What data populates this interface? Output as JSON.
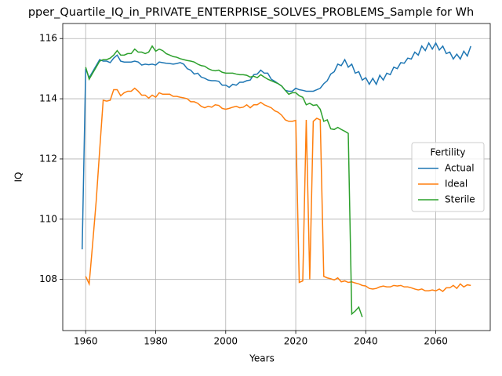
{
  "chart_data": {
    "type": "line",
    "title": "pper_Quartile_IQ_in_PRIVATE_ENTERPRISE_SOLVES_PROBLEMS_Sample for Wh",
    "xlabel": "Years",
    "ylabel": "IQ",
    "x": [
      1959,
      1960,
      1961,
      1962,
      1963,
      1964,
      1965,
      1966,
      1967,
      1968,
      1969,
      1970,
      1971,
      1972,
      1973,
      1974,
      1975,
      1976,
      1977,
      1978,
      1979,
      1980,
      1981,
      1982,
      1983,
      1984,
      1985,
      1986,
      1987,
      1988,
      1989,
      1990,
      1991,
      1992,
      1993,
      1994,
      1995,
      1996,
      1997,
      1998,
      1999,
      2000,
      2001,
      2002,
      2003,
      2004,
      2005,
      2006,
      2007,
      2008,
      2009,
      2010,
      2011,
      2012,
      2013,
      2014,
      2015,
      2016,
      2017,
      2018,
      2019,
      2020,
      2021,
      2022,
      2023,
      2024,
      2025,
      2026,
      2027,
      2028,
      2029,
      2030,
      2031,
      2032,
      2033,
      2034,
      2035,
      2036,
      2037,
      2038,
      2039,
      2040,
      2041,
      2042,
      2043,
      2044,
      2045,
      2046,
      2047,
      2048,
      2049,
      2050,
      2051,
      2052,
      2053,
      2054,
      2055,
      2056,
      2057,
      2058,
      2059,
      2060,
      2061,
      2062,
      2063,
      2064,
      2065,
      2066,
      2067,
      2068,
      2069,
      2070
    ],
    "series": [
      {
        "name": "Actual",
        "color": "#1f77b4",
        "values": [
          109.0,
          115.0,
          114.7,
          114.9,
          115.1,
          115.3,
          115.25,
          115.25,
          115.2,
          115.35,
          115.45,
          115.25,
          115.22,
          115.22,
          115.22,
          115.25,
          115.22,
          115.12,
          115.15,
          115.13,
          115.15,
          115.12,
          115.22,
          115.2,
          115.18,
          115.17,
          115.15,
          115.17,
          115.2,
          115.15,
          115.0,
          114.95,
          114.82,
          114.85,
          114.72,
          114.68,
          114.62,
          114.6,
          114.6,
          114.58,
          114.45,
          114.45,
          114.38,
          114.48,
          114.45,
          114.55,
          114.55,
          114.6,
          114.62,
          114.8,
          114.82,
          114.95,
          114.85,
          114.85,
          114.65,
          114.58,
          114.5,
          114.42,
          114.28,
          114.25,
          114.25,
          114.35,
          114.3,
          114.28,
          114.25,
          114.25,
          114.25,
          114.3,
          114.35,
          114.5,
          114.6,
          114.82,
          114.9,
          115.15,
          115.1,
          115.3,
          115.05,
          115.15,
          114.85,
          114.9,
          114.62,
          114.7,
          114.48,
          114.68,
          114.48,
          114.78,
          114.62,
          114.85,
          114.8,
          115.05,
          115.0,
          115.2,
          115.18,
          115.35,
          115.32,
          115.55,
          115.45,
          115.75,
          115.6,
          115.85,
          115.65,
          115.85,
          115.62,
          115.75,
          115.5,
          115.55,
          115.32,
          115.48,
          115.32,
          115.58,
          115.42,
          115.75
        ]
      },
      {
        "name": "Ideal",
        "color": "#ff7f0e",
        "values": [
          null,
          108.1,
          107.85,
          109.2,
          110.6,
          112.3,
          113.95,
          113.92,
          113.95,
          114.3,
          114.3,
          114.1,
          114.2,
          114.25,
          114.25,
          114.35,
          114.25,
          114.12,
          114.12,
          114.02,
          114.12,
          114.05,
          114.2,
          114.15,
          114.15,
          114.15,
          114.08,
          114.08,
          114.05,
          114.03,
          114.0,
          113.9,
          113.9,
          113.85,
          113.75,
          113.7,
          113.75,
          113.72,
          113.8,
          113.78,
          113.68,
          113.65,
          113.68,
          113.72,
          113.75,
          113.7,
          113.72,
          113.8,
          113.7,
          113.8,
          113.8,
          113.88,
          113.8,
          113.75,
          113.7,
          113.6,
          113.55,
          113.45,
          113.3,
          113.25,
          113.25,
          113.28,
          107.9,
          107.95,
          113.3,
          108.0,
          113.25,
          113.35,
          113.3,
          108.1,
          108.05,
          108.02,
          107.98,
          108.05,
          107.92,
          107.95,
          107.9,
          107.92,
          107.88,
          107.85,
          107.8,
          107.78,
          107.7,
          107.68,
          107.7,
          107.75,
          107.78,
          107.75,
          107.75,
          107.8,
          107.78,
          107.8,
          107.75,
          107.75,
          107.72,
          107.68,
          107.65,
          107.68,
          107.62,
          107.62,
          107.65,
          107.62,
          107.68,
          107.6,
          107.72,
          107.72,
          107.8,
          107.7,
          107.85,
          107.75,
          107.82,
          107.8
        ]
      },
      {
        "name": "Sterile",
        "color": "#2ca02c",
        "values": [
          null,
          115.05,
          114.65,
          114.85,
          115.05,
          115.25,
          115.3,
          115.3,
          115.35,
          115.45,
          115.6,
          115.45,
          115.45,
          115.5,
          115.5,
          115.65,
          115.55,
          115.55,
          115.5,
          115.55,
          115.75,
          115.58,
          115.65,
          115.6,
          115.5,
          115.45,
          115.4,
          115.38,
          115.33,
          115.3,
          115.27,
          115.25,
          115.22,
          115.15,
          115.1,
          115.08,
          115.0,
          114.95,
          114.93,
          114.95,
          114.88,
          114.85,
          114.85,
          114.85,
          114.82,
          114.8,
          114.8,
          114.78,
          114.72,
          114.75,
          114.7,
          114.8,
          114.72,
          114.65,
          114.6,
          114.55,
          114.5,
          114.42,
          114.28,
          114.15,
          114.2,
          114.2,
          114.1,
          114.05,
          113.8,
          113.85,
          113.78,
          113.8,
          113.65,
          113.25,
          113.3,
          113.0,
          112.98,
          113.05,
          112.98,
          112.92,
          112.85,
          106.85,
          106.95,
          107.08,
          106.75,
          null,
          null,
          null,
          null,
          null,
          null,
          null,
          null,
          null,
          null,
          null,
          null,
          null,
          null,
          null,
          null,
          null,
          null,
          null,
          null,
          null,
          null,
          null,
          null,
          null,
          null,
          null,
          null,
          null,
          null,
          null
        ]
      }
    ],
    "xlim": [
      1953.45,
      2075.55
    ],
    "xticks": [
      1960,
      1980,
      2000,
      2020,
      2040,
      2060
    ],
    "ylim": [
      106.3,
      116.5
    ],
    "yticks": [
      108,
      110,
      112,
      114,
      116
    ],
    "grid": true,
    "legend_title": "Fertility",
    "legend_loc": "center right"
  }
}
